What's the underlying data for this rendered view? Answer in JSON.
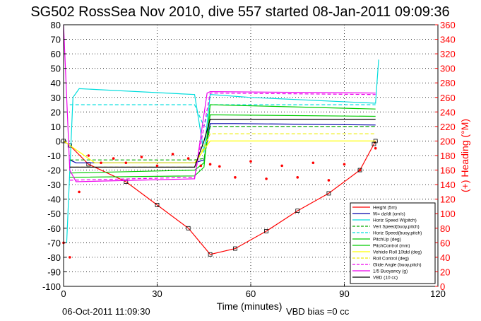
{
  "chart_data": {
    "type": "line",
    "title": "SG502 RossSea Nov 2010, dive 557 started 08-Jan-2011 09:09:36",
    "xlabel": "Time (minutes)",
    "ylabel_right": "(+) Heading (°M)",
    "footer_left": "06-Oct-2011 11:09:30",
    "footer_right": "VBD bias =0 cc",
    "xlim": [
      0,
      120
    ],
    "ylim": [
      -100,
      80
    ],
    "ylim_right": [
      0,
      360
    ],
    "xticks": [
      "0",
      "30",
      "60",
      "90",
      "120"
    ],
    "yticks": [
      "80",
      "70",
      "60",
      "50",
      "40",
      "30",
      "20",
      "10",
      "0",
      "-10",
      "-20",
      "-30",
      "-40",
      "-50",
      "-60",
      "-70",
      "-80",
      "-90",
      "-100"
    ],
    "yticks_right": [
      "360",
      "340",
      "320",
      "300",
      "280",
      "260",
      "240",
      "220",
      "200",
      "180",
      "160",
      "140",
      "120",
      "100",
      "80",
      "60",
      "40",
      "20",
      "0"
    ],
    "grid": true,
    "legend_position": "bottom-right",
    "series": [
      {
        "name": "Height (5m)",
        "color": "#ff0000",
        "style": "solid",
        "x": [
          0,
          2,
          8,
          20,
          30,
          40,
          47,
          55,
          65,
          75,
          85,
          95,
          99.5,
          100
        ],
        "y": [
          0,
          -3,
          -16,
          -28,
          -44,
          -60,
          -78,
          -74,
          -62,
          -48,
          -36,
          -20,
          -2,
          0
        ]
      },
      {
        "name": "W= dz/dt (cm/s)",
        "color": "#0000aa",
        "style": "solid",
        "x": [
          2,
          4,
          42,
          45,
          47,
          55,
          100
        ],
        "y": [
          -13,
          -15,
          -15,
          -13,
          12,
          12,
          11
        ]
      },
      {
        "name": "Horiz Speed W(pitch)",
        "color": "#00dddd",
        "style": "solid",
        "x": [
          1,
          3,
          5,
          42,
          45,
          47,
          60,
          100,
          101
        ],
        "y": [
          -70,
          30,
          36,
          32,
          -8,
          32,
          30,
          26,
          56
        ]
      },
      {
        "name": "Vert Speed(buoy,pitch)",
        "color": "#00aa00",
        "style": "dashed",
        "x": [
          2,
          42,
          45,
          47,
          100
        ],
        "y": [
          -13,
          -13,
          -12,
          10,
          10
        ]
      },
      {
        "name": "Horiz Speed(buoy,pitch)",
        "color": "#00dddd",
        "style": "dashed",
        "x": [
          2,
          42,
          45,
          47,
          100
        ],
        "y": [
          25,
          25,
          10,
          25,
          25
        ]
      },
      {
        "name": "PitchUp (deg)",
        "color": "#00cc00",
        "style": "solid",
        "x": [
          2,
          42,
          45,
          47,
          100
        ],
        "y": [
          -22,
          -20,
          -15,
          18,
          17
        ]
      },
      {
        "name": "PitchControl (mm)",
        "color": "#00cc00",
        "style": "solid",
        "x": [
          2,
          42,
          45,
          47,
          100
        ],
        "y": [
          -25,
          -24,
          -18,
          25,
          22
        ]
      },
      {
        "name": "Vehicle Roll 10tdd (deg)",
        "color": "#ffff00",
        "style": "solid",
        "x": [
          0,
          10,
          20,
          30,
          42,
          47,
          60,
          80,
          100
        ],
        "y": [
          0,
          -15,
          -15,
          -15,
          -15,
          0,
          0,
          0,
          0
        ]
      },
      {
        "name": "Roll Control (deg)",
        "color": "#eeee00",
        "style": "dashed",
        "x": [
          2,
          42,
          47,
          100
        ],
        "y": [
          -18,
          -18,
          5,
          5
        ]
      },
      {
        "name": "Glide Angle (buoy,pitch)",
        "color": "#ee00ee",
        "style": "dashed",
        "x": [
          2,
          42,
          47,
          100
        ],
        "y": [
          -27,
          -25,
          33,
          32
        ]
      },
      {
        "name": "1/5 Buoyancy (g)",
        "color": "#ee00ee",
        "style": "solid",
        "x": [
          0,
          2,
          4,
          42,
          46,
          47,
          100
        ],
        "y": [
          80,
          -20,
          -28,
          -26,
          33,
          34,
          33
        ]
      },
      {
        "name": "VBD (10 cc)",
        "color": "#000000",
        "style": "solid",
        "x": [
          2,
          4,
          42,
          45,
          47,
          100
        ],
        "y": [
          -18,
          -18,
          -18,
          0,
          15,
          15
        ]
      },
      {
        "name": "Heading",
        "color": "#ff0000",
        "style": "dots",
        "axis": "right",
        "x": [
          0,
          2,
          5,
          8,
          12,
          16,
          20,
          25,
          30,
          35,
          40,
          44,
          47,
          50,
          55,
          60,
          65,
          70,
          75,
          80,
          85,
          90,
          95,
          100
        ],
        "y": [
          60,
          40,
          130,
          180,
          170,
          176,
          170,
          178,
          166,
          182,
          176,
          166,
          168,
          165,
          150,
          172,
          148,
          166,
          150,
          170,
          146,
          168,
          160,
          190
        ]
      }
    ]
  }
}
